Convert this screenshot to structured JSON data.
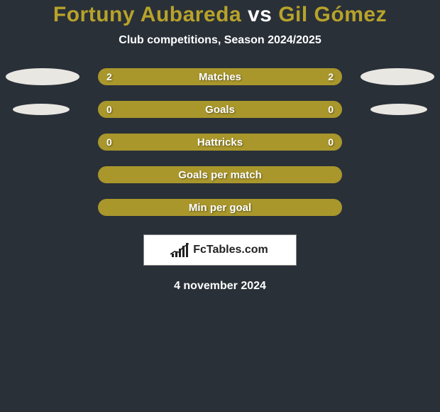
{
  "header": {
    "player_left": "Fortuny Aubareda",
    "vs": "vs",
    "player_right": "Gil Gómez",
    "title_color_left": "#b7a32a",
    "title_color_vs": "#ffffff",
    "title_color_right": "#b7a32a",
    "title_fontsize": 30,
    "subtitle": "Club competitions, Season 2024/2025",
    "subtitle_fontsize": 16
  },
  "rows": [
    {
      "label": "Matches",
      "left_value": "2",
      "right_value": "2",
      "pill_bg": "#a9972c",
      "left_gauge_color": "#e9e7e2",
      "right_gauge_color": "#e9e7e2",
      "full": true
    },
    {
      "label": "Goals",
      "left_value": "0",
      "right_value": "0",
      "pill_bg": "#a9972c",
      "left_gauge_color": "#e9e7e2",
      "right_gauge_color": "#e9e7e2",
      "full": false
    },
    {
      "label": "Hattricks",
      "left_value": "0",
      "right_value": "0",
      "pill_bg": "#a9972c",
      "left_gauge_color": null,
      "right_gauge_color": null,
      "full": false
    },
    {
      "label": "Goals per match",
      "left_value": "",
      "right_value": "",
      "pill_bg": "#a9972c",
      "left_gauge_color": null,
      "right_gauge_color": null,
      "full": false
    },
    {
      "label": "Min per goal",
      "left_value": "",
      "right_value": "",
      "pill_bg": "#a9972c",
      "left_gauge_color": null,
      "right_gauge_color": null,
      "full": false
    }
  ],
  "style": {
    "background": "#2a3038",
    "pill_text_color": "#ffffff",
    "pill_fontsize": 15,
    "gauge_width_full": 104,
    "gauge_width_small": 80,
    "gauge_height_full": 24,
    "gauge_height_small": 16,
    "pill_width": 344,
    "pill_height": 24
  },
  "footer": {
    "logo_text": "FcTables.com",
    "date": "4 november 2024",
    "date_fontsize": 16
  }
}
